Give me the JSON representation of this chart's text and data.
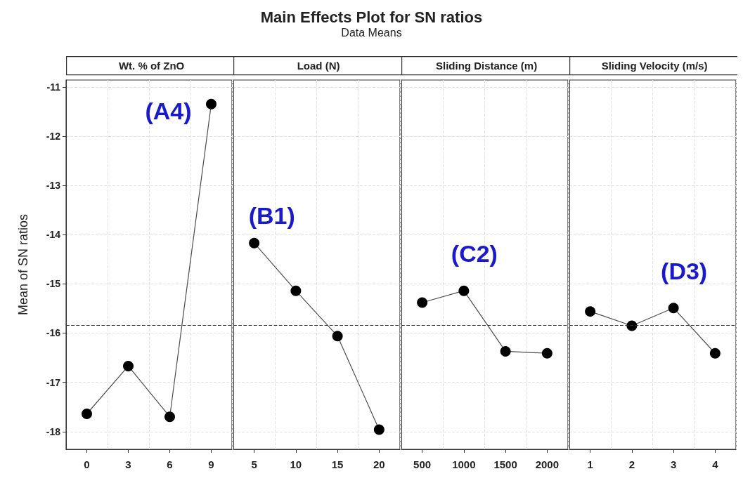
{
  "chart_data": [
    {
      "type": "other",
      "title": "Main Effects Plot for SN ratios",
      "subtitle": "Data Means"
    },
    {
      "type": "line",
      "xlabel": "Wt. % of ZnO",
      "ylabel": "Mean of SN ratios",
      "categories": [
        "0",
        "3",
        "6",
        "9"
      ],
      "values": [
        -17.64,
        -16.67,
        -17.7,
        -11.35
      ],
      "color": "#000000",
      "marker": "circle",
      "line_style": "solid",
      "ylim": [
        -18.36,
        -10.86
      ],
      "yticks": [
        -18,
        -17,
        -16,
        -15,
        -14,
        -13,
        -12,
        -11
      ],
      "grid": true,
      "ref_lines": [
        {
          "axis": "y",
          "value": -15.84,
          "line_style": "dashed",
          "color": "#333333"
        }
      ],
      "annotations": [
        {
          "text": "(A4)",
          "x": "9",
          "y": -11.35
        }
      ]
    },
    {
      "type": "line",
      "xlabel": "Load (N)",
      "categories": [
        "5",
        "10",
        "15",
        "20"
      ],
      "values": [
        -14.17,
        -15.14,
        -16.06,
        -17.96
      ],
      "color": "#000000",
      "marker": "circle",
      "line_style": "solid",
      "ylim": [
        -18.36,
        -10.86
      ],
      "yticks": [
        -18,
        -17,
        -16,
        -15,
        -14,
        -13,
        -12,
        -11
      ],
      "grid": true,
      "tick_labels": "x",
      "ref_lines": [
        {
          "axis": "y",
          "value": -15.84,
          "line_style": "dashed",
          "color": "#333333"
        }
      ],
      "annotations": [
        {
          "text": "(B1)",
          "x": "5",
          "y": -14.17
        }
      ]
    },
    {
      "type": "line",
      "xlabel": "Sliding Distance (m)",
      "categories": [
        "500",
        "1000",
        "1500",
        "2000"
      ],
      "values": [
        -15.38,
        -15.14,
        -16.37,
        -16.41
      ],
      "color": "#000000",
      "marker": "circle",
      "line_style": "solid",
      "ylim": [
        -18.36,
        -10.86
      ],
      "yticks": [
        -18,
        -17,
        -16,
        -15,
        -14,
        -13,
        -12,
        -11
      ],
      "grid": true,
      "tick_labels": "x",
      "ref_lines": [
        {
          "axis": "y",
          "value": -15.84,
          "line_style": "dashed",
          "color": "#333333"
        }
      ],
      "annotations": [
        {
          "text": "(C2)",
          "x": "1000",
          "y": -15.14
        }
      ]
    },
    {
      "type": "line",
      "xlabel": "Sliding Velocity (m/s)",
      "categories": [
        "1",
        "2",
        "3",
        "4"
      ],
      "values": [
        -15.56,
        -15.85,
        -15.49,
        -16.41
      ],
      "color": "#000000",
      "marker": "circle",
      "line_style": "solid",
      "ylim": [
        -18.36,
        -10.86
      ],
      "yticks": [
        -18,
        -17,
        -16,
        -15,
        -14,
        -13,
        -12,
        -11
      ],
      "grid": true,
      "tick_labels": "x",
      "ref_lines": [
        {
          "axis": "y",
          "value": -15.84,
          "line_style": "dashed",
          "color": "#333333"
        }
      ],
      "annotations": [
        {
          "text": "(D3)",
          "x": "3",
          "y": -15.49
        }
      ]
    }
  ]
}
